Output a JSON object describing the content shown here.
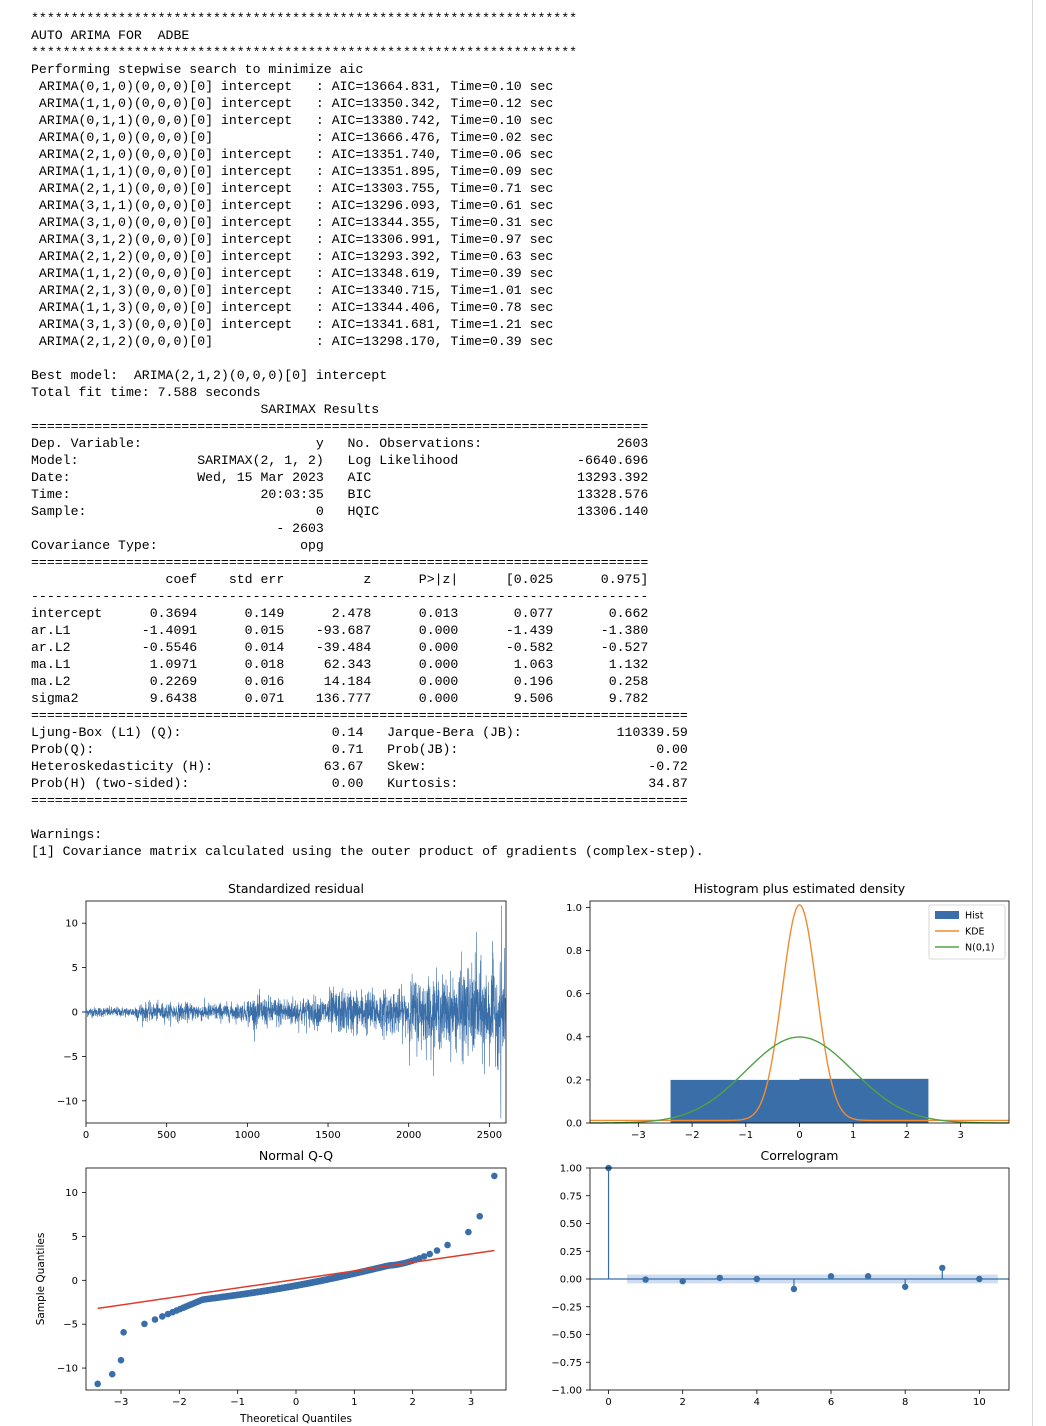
{
  "output": {
    "header_rule": "*********************************************************************",
    "title": "AUTO ARIMA FOR  ADBE",
    "stepwise_intro": "Performing stepwise search to minimize aic",
    "stepwise_lines": [
      " ARIMA(0,1,0)(0,0,0)[0] intercept   : AIC=13664.831, Time=0.10 sec",
      " ARIMA(1,1,0)(0,0,0)[0] intercept   : AIC=13350.342, Time=0.12 sec",
      " ARIMA(0,1,1)(0,0,0)[0] intercept   : AIC=13380.742, Time=0.10 sec",
      " ARIMA(0,1,0)(0,0,0)[0]             : AIC=13666.476, Time=0.02 sec",
      " ARIMA(2,1,0)(0,0,0)[0] intercept   : AIC=13351.740, Time=0.06 sec",
      " ARIMA(1,1,1)(0,0,0)[0] intercept   : AIC=13351.895, Time=0.09 sec",
      " ARIMA(2,1,1)(0,0,0)[0] intercept   : AIC=13303.755, Time=0.71 sec",
      " ARIMA(3,1,1)(0,0,0)[0] intercept   : AIC=13296.093, Time=0.61 sec",
      " ARIMA(3,1,0)(0,0,0)[0] intercept   : AIC=13344.355, Time=0.31 sec",
      " ARIMA(3,1,2)(0,0,0)[0] intercept   : AIC=13306.991, Time=0.97 sec",
      " ARIMA(2,1,2)(0,0,0)[0] intercept   : AIC=13293.392, Time=0.63 sec",
      " ARIMA(1,1,2)(0,0,0)[0] intercept   : AIC=13348.619, Time=0.39 sec",
      " ARIMA(2,1,3)(0,0,0)[0] intercept   : AIC=13340.715, Time=1.01 sec",
      " ARIMA(1,1,3)(0,0,0)[0] intercept   : AIC=13344.406, Time=0.78 sec",
      " ARIMA(3,1,3)(0,0,0)[0] intercept   : AIC=13341.681, Time=1.21 sec",
      " ARIMA(2,1,2)(0,0,0)[0]             : AIC=13298.170, Time=0.39 sec"
    ],
    "best_model": "Best model:  ARIMA(2,1,2)(0,0,0)[0] intercept",
    "total_fit_time": "Total fit time: 7.588 seconds",
    "results_title": "                             SARIMAX Results",
    "rule_double": "==============================================================================",
    "rule_single": "------------------------------------------------------------------------------",
    "rule_double_wide": "===================================================================================",
    "summary_lines": [
      "Dep. Variable:                      y   No. Observations:                 2603",
      "Model:               SARIMAX(2, 1, 2)   Log Likelihood               -6640.696",
      "Date:                Wed, 15 Mar 2023   AIC                          13293.392",
      "Time:                        20:03:35   BIC                          13328.576",
      "Sample:                             0   HQIC                         13306.140",
      "                               - 2603",
      "Covariance Type:                  opg"
    ],
    "coef_header": "                 coef    std err          z      P>|z|      [0.025      0.975]",
    "coef_rows": [
      "intercept      0.3694      0.149      2.478      0.013       0.077       0.662",
      "ar.L1         -1.4091      0.015    -93.687      0.000      -1.439      -1.380",
      "ar.L2         -0.5546      0.014    -39.484      0.000      -0.582      -0.527",
      "ma.L1          1.0971      0.018     62.343      0.000       1.063       1.132",
      "ma.L2          0.2269      0.016     14.184      0.000       0.196       0.258",
      "sigma2         9.6438      0.071    136.777      0.000       9.506       9.782"
    ],
    "diagnostic_lines": [
      "Ljung-Box (L1) (Q):                   0.14   Jarque-Bera (JB):            110339.59",
      "Prob(Q):                              0.71   Prob(JB):                         0.00",
      "Heteroskedasticity (H):              63.67   Skew:                            -0.72",
      "Prob(H) (two-sided):                  0.00   Kurtosis:                        34.87"
    ],
    "warnings_title": "Warnings:",
    "warning_1": "[1] Covariance matrix calculated using the outer product of gradients (complex-step)."
  },
  "chart_data": [
    {
      "type": "line",
      "title": "Standardized residual",
      "xlabel": "",
      "ylabel": "",
      "xlim": [
        0,
        2603
      ],
      "ylim": [
        -12.5,
        12.5
      ],
      "xticks": [
        "0",
        "500",
        "1000",
        "1500",
        "2000",
        "2500"
      ],
      "yticks": [
        "−10",
        "−5",
        "0",
        "5",
        "10"
      ],
      "series": [
        {
          "envelope_segments": [
            {
              "x": [
                0,
                300
              ],
              "amplitude": 0.5
            },
            {
              "x": [
                300,
                1000
              ],
              "amplitude": 0.9
            },
            {
              "x": [
                1000,
                1500
              ],
              "amplitude": 1.5
            },
            {
              "x": [
                1500,
                2000
              ],
              "amplitude": 2.2
            },
            {
              "x": [
                2000,
                2300
              ],
              "amplitude": 3.5
            },
            {
              "x": [
                2300,
                2603
              ],
              "amplitude": 4.5
            }
          ],
          "extremes": [
            {
              "x": 2576,
              "y": 12.0
            },
            {
              "x": 2571,
              "y": -12.0
            },
            {
              "x": 2420,
              "y": 9.0
            },
            {
              "x": 2470,
              "y": -7.0
            },
            {
              "x": 2520,
              "y": 8.0
            },
            {
              "x": 2552,
              "y": -6.5
            }
          ]
        }
      ],
      "color": "#3a6ea8"
    },
    {
      "type": "bar",
      "title": "Histogram plus estimated density",
      "xlim": [
        -3.9,
        3.9
      ],
      "ylim": [
        0,
        1.03
      ],
      "xticks": [
        "−3",
        "−2",
        "−1",
        "0",
        "1",
        "2",
        "3"
      ],
      "yticks": [
        "0.0",
        "0.2",
        "0.4",
        "0.6",
        "0.8",
        "1.0"
      ],
      "legend": [
        "Hist",
        "KDE",
        "N(0,1)"
      ],
      "legend_placement": "top-right",
      "hist_bins": [
        {
          "x0": -2.4,
          "x1": 0.0,
          "height": 0.2
        },
        {
          "x0": 0.0,
          "x1": 2.4,
          "height": 0.205
        }
      ],
      "kde_peak": 1.0,
      "kde_sd": 0.32,
      "normal_peak": 0.399,
      "colors": {
        "hist": "#3a6ea8",
        "kde": "#f28a30",
        "normal": "#4ea344"
      }
    },
    {
      "type": "scatter",
      "title": "Normal Q-Q",
      "xlabel": "Theoretical Quantiles",
      "ylabel": "Sample Quantiles",
      "xlim": [
        -3.6,
        3.6
      ],
      "ylim": [
        -12.5,
        12.8
      ],
      "xticks": [
        "−3",
        "−2",
        "−1",
        "0",
        "1",
        "2",
        "3"
      ],
      "yticks": [
        "−10",
        "−5",
        "0",
        "5",
        "10"
      ],
      "reference_line": {
        "x": [
          -3.4,
          3.4
        ],
        "y": [
          -3.2,
          3.4
        ]
      },
      "outliers": [
        {
          "x": -3.4,
          "y": -11.8
        },
        {
          "x": -3.15,
          "y": -10.7
        },
        {
          "x": -3.0,
          "y": -9.1
        },
        {
          "x": 3.15,
          "y": 7.3
        },
        {
          "x": 3.4,
          "y": 11.9
        }
      ],
      "colors": {
        "points": "#3a6ea8",
        "line": "#e03a2a"
      }
    },
    {
      "type": "bar",
      "title": "Correlogram",
      "xlim": [
        -0.5,
        10.8
      ],
      "ylim": [
        -1.0,
        1.0
      ],
      "xticks": [
        "0",
        "2",
        "4",
        "6",
        "8",
        "10"
      ],
      "yticks": [
        "1.00",
        "0.75",
        "0.50",
        "0.25",
        "0.00",
        "−0.25",
        "−0.50",
        "−0.75",
        "−1.00"
      ],
      "lags": [
        0,
        1,
        2,
        3,
        4,
        5,
        6,
        7,
        8,
        9,
        10
      ],
      "values": [
        1.0,
        -0.005,
        -0.02,
        0.01,
        0.0,
        -0.09,
        0.025,
        0.025,
        -0.07,
        0.1,
        0.0
      ],
      "confidence_band": 0.04,
      "colors": {
        "stems": "#3a6ea8",
        "band": "#aec7e8"
      }
    }
  ]
}
